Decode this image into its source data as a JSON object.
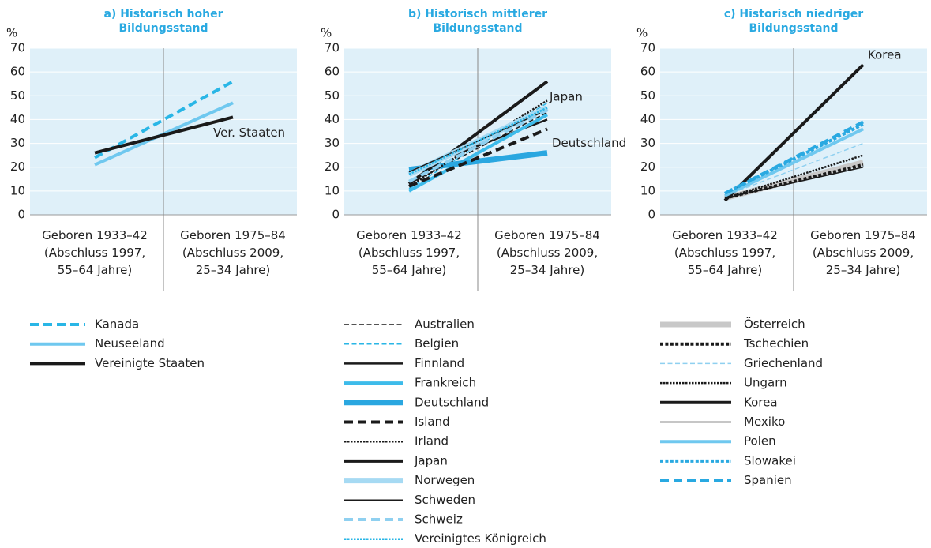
{
  "chart_data": [
    {
      "type": "line",
      "title": "a) Historisch hoher\nBildungsstand",
      "ylabel": "%",
      "ylim": [
        0,
        70
      ],
      "yticks": [
        0,
        10,
        20,
        30,
        40,
        50,
        60,
        70
      ],
      "categories": [
        "Geboren 1933–42\n(Abschluss 1997,\n55–64 Jahre)",
        "Geboren 1975–84\n(Abschluss 2009,\n25–34 Jahre)"
      ],
      "series": [
        {
          "name": "Kanada",
          "color": "#29b6e6",
          "style": "dashed",
          "weight": "thick",
          "values": [
            24,
            56
          ]
        },
        {
          "name": "Neuseeland",
          "color": "#6fc8ef",
          "style": "solid",
          "weight": "thick",
          "values": [
            21,
            47
          ]
        },
        {
          "name": "Vereinigte Staaten",
          "color": "#1a1a1a",
          "style": "solid",
          "weight": "thick",
          "values": [
            26,
            41
          ],
          "label": "Ver. Staaten"
        }
      ]
    },
    {
      "type": "line",
      "title": "b) Historisch mittlerer\nBildungsstand",
      "ylabel": "%",
      "ylim": [
        0,
        70
      ],
      "yticks": [
        0,
        10,
        20,
        30,
        40,
        50,
        60,
        70
      ],
      "categories": [
        "Geboren 1933–42\n(Abschluss 1997,\n55–64 Jahre)",
        "Geboren 1975–84\n(Abschluss 2009,\n25–34 Jahre)"
      ],
      "series": [
        {
          "name": "Australien",
          "color": "#1a1a1a",
          "style": "dashed",
          "weight": "thin",
          "values": [
            13,
            43
          ]
        },
        {
          "name": "Belgien",
          "color": "#29b6e6",
          "style": "dashed",
          "weight": "thin",
          "values": [
            11,
            47
          ]
        },
        {
          "name": "Finnland",
          "color": "#1a1a1a",
          "style": "solid",
          "weight": "medium",
          "values": [
            18,
            40
          ]
        },
        {
          "name": "Frankreich",
          "color": "#3dbbea",
          "style": "solid",
          "weight": "thick",
          "values": [
            10,
            42
          ]
        },
        {
          "name": "Deutschland",
          "color": "#2aa7e0",
          "style": "solid",
          "weight": "heavy",
          "values": [
            19,
            26
          ],
          "label": "Deutschland"
        },
        {
          "name": "Island",
          "color": "#1a1a1a",
          "style": "dashed",
          "weight": "thick",
          "values": [
            12,
            36
          ]
        },
        {
          "name": "Irland",
          "color": "#1a1a1a",
          "style": "dotted",
          "weight": "medium",
          "values": [
            12,
            48
          ]
        },
        {
          "name": "Japan",
          "color": "#1a1a1a",
          "style": "solid",
          "weight": "thick",
          "values": [
            13,
            56
          ],
          "label": "Japan"
        },
        {
          "name": "Norwegen",
          "color": "#a6daf3",
          "style": "solid",
          "weight": "heavy",
          "values": [
            17,
            45
          ]
        },
        {
          "name": "Schweden",
          "color": "#1a1a1a",
          "style": "solid",
          "weight": "thin",
          "values": [
            18,
            44
          ]
        },
        {
          "name": "Schweiz",
          "color": "#8fd0f0",
          "style": "dashed",
          "weight": "thick",
          "values": [
            14,
            44
          ]
        },
        {
          "name": "Vereinigtes Königreich",
          "color": "#29b6e6",
          "style": "dotted",
          "weight": "medium",
          "values": [
            17,
            45
          ]
        }
      ]
    },
    {
      "type": "line",
      "title": "c) Historisch niedriger\nBildungsstand",
      "ylabel": "%",
      "ylim": [
        0,
        70
      ],
      "yticks": [
        0,
        10,
        20,
        30,
        40,
        50,
        60,
        70
      ],
      "categories": [
        "Geboren 1933–42\n(Abschluss 1997,\n55–64 Jahre)",
        "Geboren 1975–84\n(Abschluss 2009,\n25–34 Jahre)"
      ],
      "series": [
        {
          "name": "Österreich",
          "color": "#c8c8c8",
          "style": "solid",
          "weight": "heavy",
          "values": [
            7,
            22
          ]
        },
        {
          "name": "Tschechien",
          "color": "#1a1a1a",
          "style": "dotted",
          "weight": "thick",
          "values": [
            7,
            21
          ]
        },
        {
          "name": "Griechenland",
          "color": "#8fd0f0",
          "style": "dashed",
          "weight": "thin",
          "values": [
            8,
            30
          ]
        },
        {
          "name": "Ungarn",
          "color": "#1a1a1a",
          "style": "dotted",
          "weight": "medium",
          "values": [
            7,
            25
          ]
        },
        {
          "name": "Korea",
          "color": "#1a1a1a",
          "style": "solid",
          "weight": "thick",
          "values": [
            6,
            63
          ],
          "label": "Korea"
        },
        {
          "name": "Mexiko",
          "color": "#1a1a1a",
          "style": "solid",
          "weight": "thin",
          "values": [
            7,
            20
          ]
        },
        {
          "name": "Polen",
          "color": "#6fc8ef",
          "style": "solid",
          "weight": "thick",
          "values": [
            8,
            36
          ]
        },
        {
          "name": "Slowakei",
          "color": "#29a9e1",
          "style": "dotted",
          "weight": "thick",
          "values": [
            9,
            38
          ]
        },
        {
          "name": "Spanien",
          "color": "#29a9e1",
          "style": "dashed",
          "weight": "thick",
          "values": [
            9,
            39
          ]
        }
      ]
    }
  ]
}
